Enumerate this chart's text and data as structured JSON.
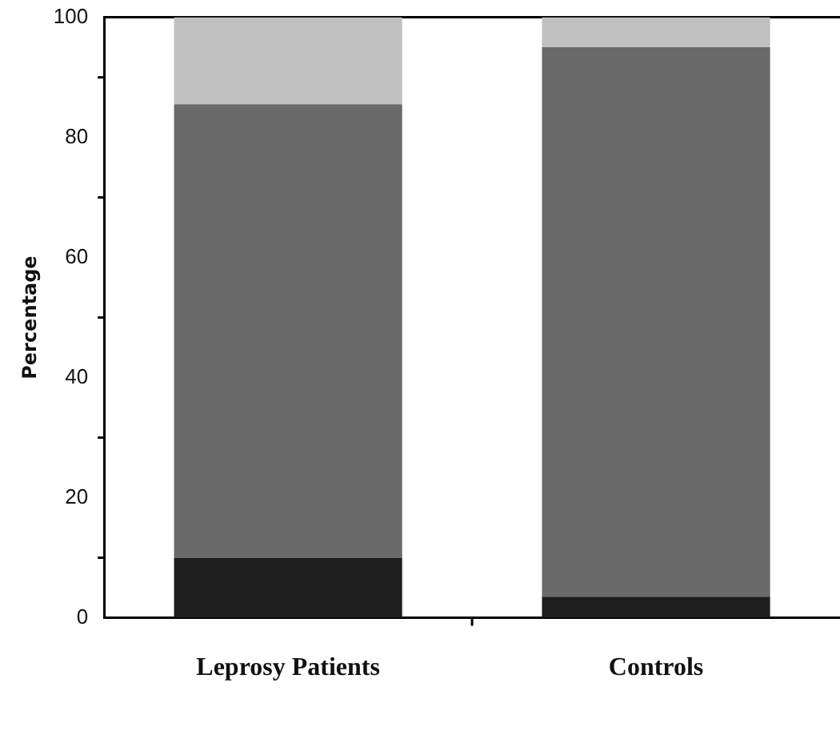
{
  "chart_data": {
    "type": "bar",
    "ylabel": "Percentage",
    "categories": [
      "Leprosy Patients",
      "Controls"
    ],
    "stacked": true,
    "series": [
      {
        "color": "#1e1e1e",
        "values": [
          10,
          3.5
        ]
      },
      {
        "color": "#6a6a6a",
        "values": [
          75.5,
          91.5
        ]
      },
      {
        "color": "#c0c0c0",
        "values": [
          14.5,
          5
        ]
      }
    ],
    "ylim": [
      0,
      100
    ],
    "yticks": [
      0,
      20,
      40,
      60,
      80,
      100
    ],
    "grid": false,
    "legend": false
  }
}
